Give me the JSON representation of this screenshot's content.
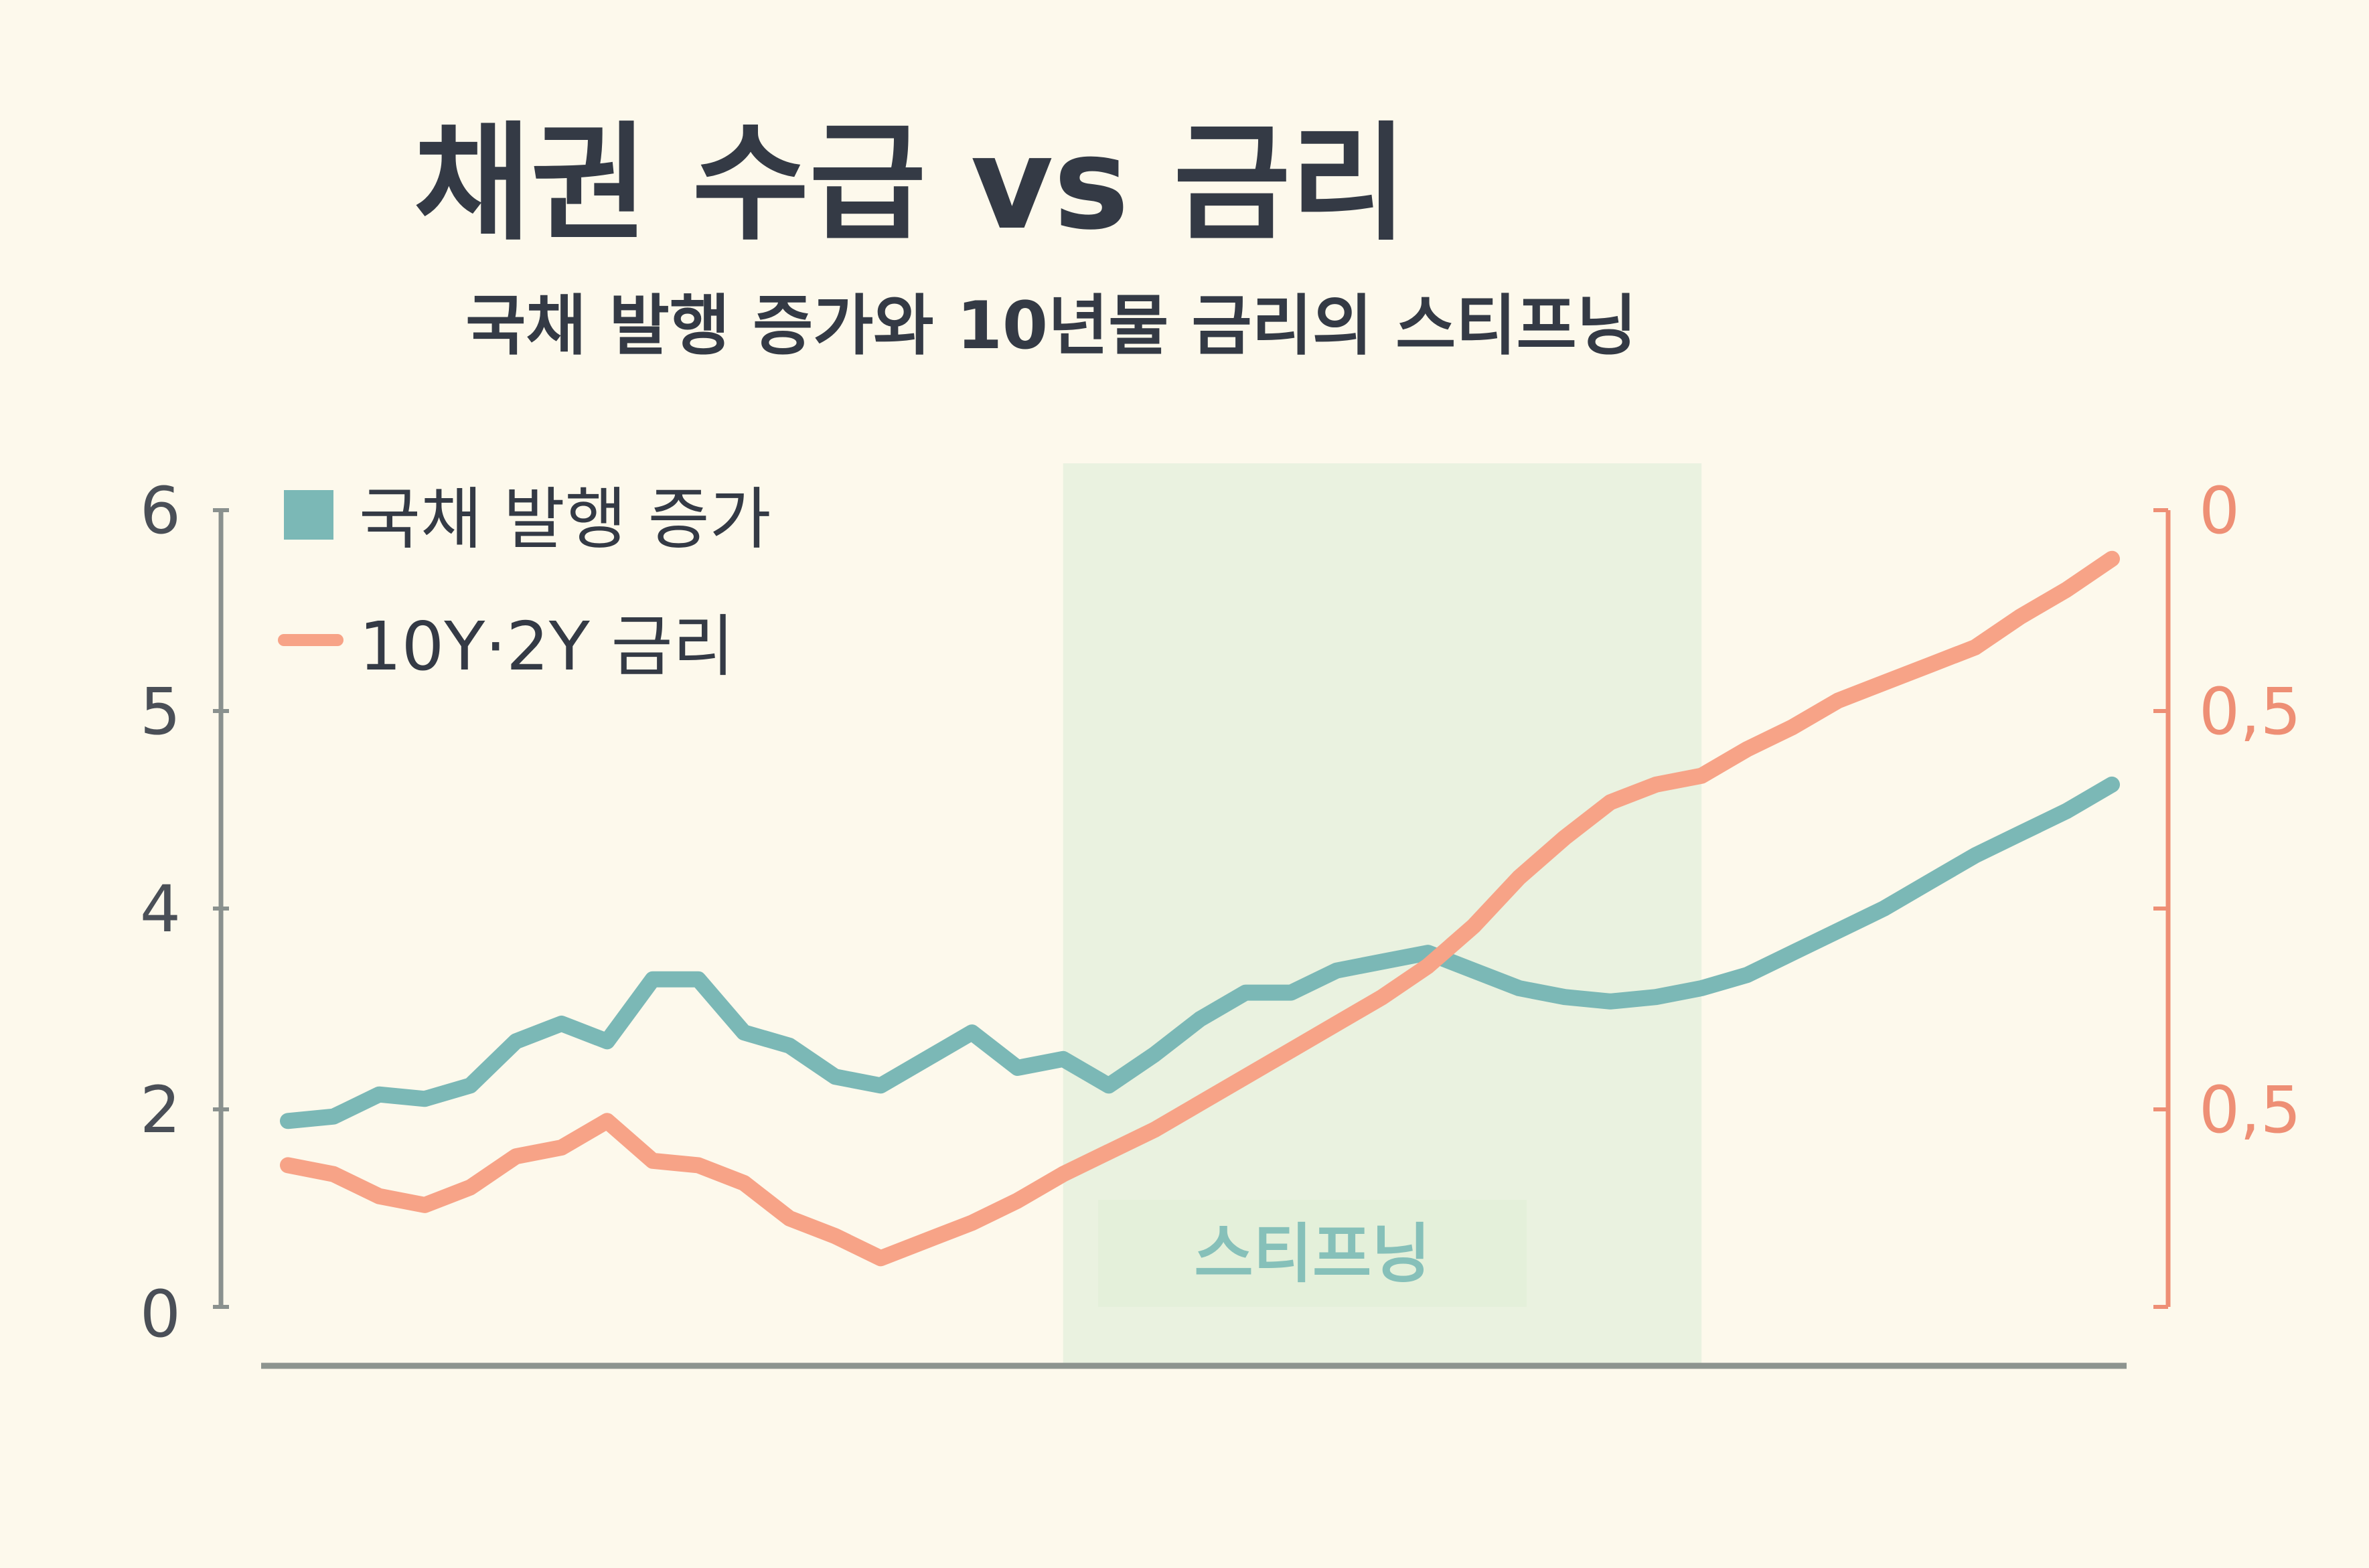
{
  "title": "채권 수급 vs 금리",
  "subtitle": "국채 발행 증가와 10년물 금리의 스티프닝",
  "colors": {
    "background": "#fdf9ec",
    "issuance": "#7bb8b6",
    "rate": "#f7a387",
    "band": "#e6f1de",
    "band_label": "#86c0b9",
    "left_axis": "#8a918e",
    "right_axis": "#ee8f75",
    "baseline": "#8d948f"
  },
  "chart_data": {
    "type": "line",
    "left_axis": {
      "ticks": [
        "0",
        "2",
        "4",
        "5",
        "6"
      ]
    },
    "right_axis": {
      "ticks": [
        "0",
        "0,5",
        "0,5"
      ]
    },
    "legend": {
      "placement": "top-left"
    },
    "band": {
      "label": "스티프닝",
      "x_start": 17,
      "x_end": 31
    },
    "series": [
      {
        "name": "국채 발행 증가",
        "axis": "left",
        "x": [
          0,
          1,
          2,
          3,
          4,
          5,
          6,
          7,
          8,
          9,
          10,
          11,
          12,
          13,
          14,
          15,
          16,
          17,
          18,
          19,
          20,
          21,
          22,
          23,
          24,
          25,
          26,
          27,
          28,
          29,
          30,
          31,
          32,
          33,
          34,
          35,
          36,
          37,
          38,
          39,
          40
        ],
        "values": [
          2.1,
          2.15,
          2.4,
          2.35,
          2.5,
          3.0,
          3.2,
          3.0,
          3.7,
          3.7,
          3.1,
          2.95,
          2.6,
          2.5,
          2.8,
          3.1,
          2.7,
          2.8,
          2.5,
          2.85,
          3.25,
          3.55,
          3.55,
          3.8,
          3.9,
          4.0,
          3.8,
          3.6,
          3.5,
          3.45,
          3.5,
          3.6,
          3.75,
          4.0,
          4.25,
          4.5,
          4.8,
          5.1,
          5.35,
          5.6,
          5.9
        ]
      },
      {
        "name": "10Y·2Y 금리",
        "axis": "right",
        "x": [
          0,
          1,
          2,
          3,
          4,
          5,
          6,
          7,
          8,
          9,
          10,
          11,
          12,
          13,
          14,
          15,
          16,
          17,
          18,
          19,
          20,
          21,
          22,
          23,
          24,
          25,
          26,
          27,
          28,
          29,
          30,
          31,
          32,
          33,
          34,
          35,
          36,
          37,
          38,
          39,
          40
        ],
        "values": [
          1.6,
          1.5,
          1.25,
          1.15,
          1.35,
          1.7,
          1.8,
          2.1,
          1.65,
          1.6,
          1.4,
          1.0,
          0.8,
          0.55,
          0.75,
          0.95,
          1.2,
          1.5,
          1.75,
          2.0,
          2.3,
          2.6,
          2.9,
          3.2,
          3.5,
          3.85,
          4.3,
          4.85,
          5.3,
          5.7,
          5.9,
          6.0,
          6.3,
          6.55,
          6.85,
          7.05,
          7.25,
          7.45,
          7.8,
          8.1,
          8.45
        ]
      }
    ]
  }
}
